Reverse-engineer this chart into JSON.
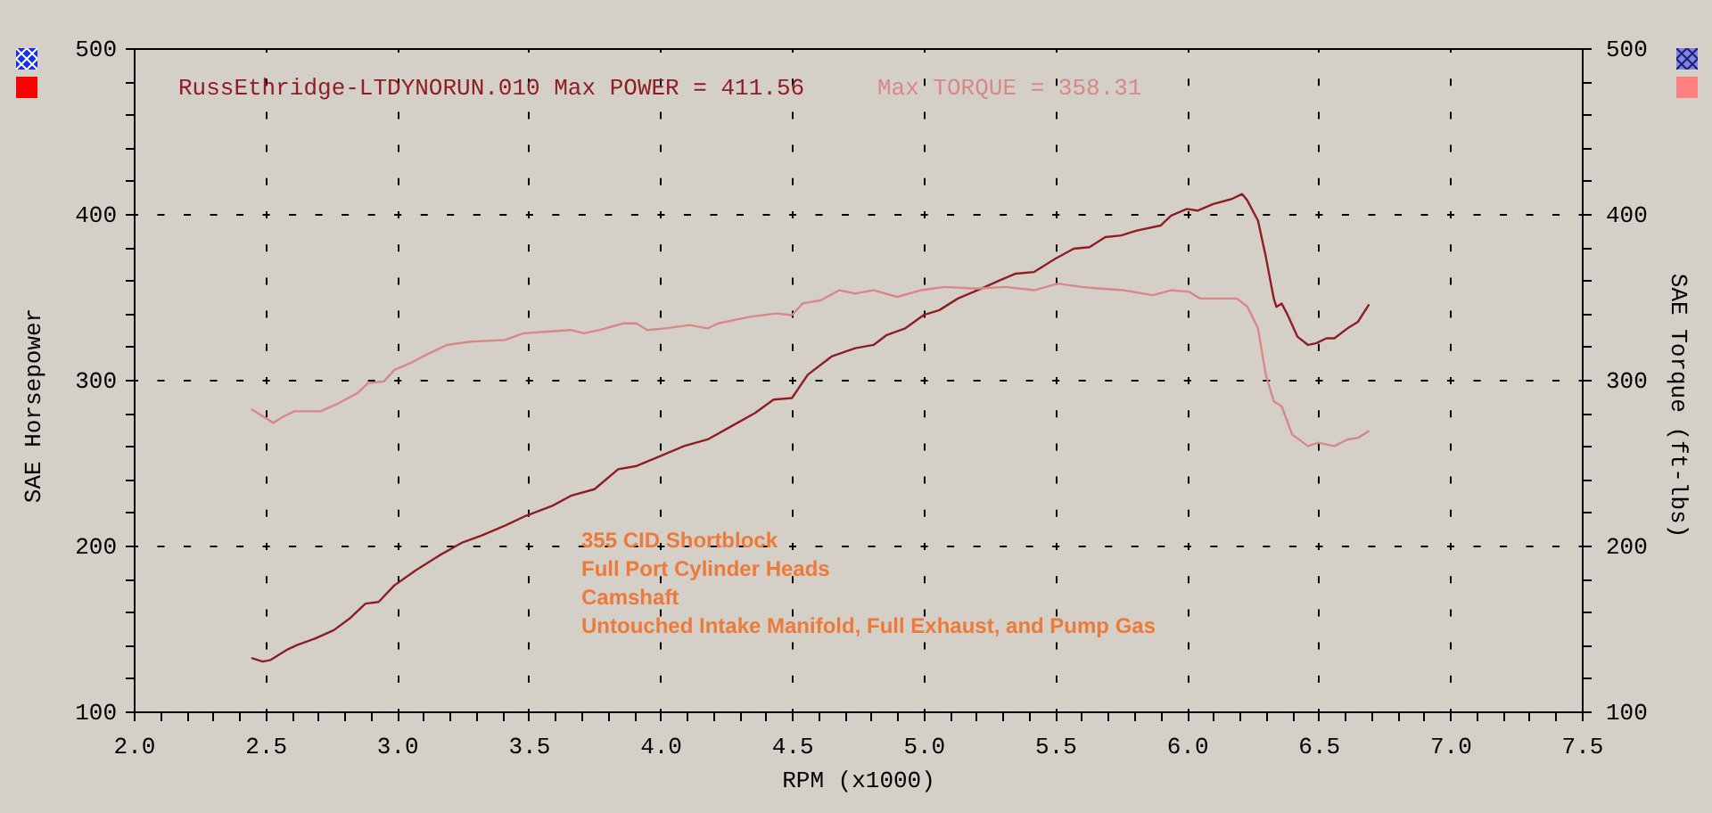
{
  "chart_data": {
    "type": "line",
    "xlabel": "RPM (x1000)",
    "ylabel": "SAE Horsepower",
    "y2label": "SAE Torque (ft-lbs)",
    "annotations": [
      "RussEthridge-LTDYNORUN.010 Max POWER = 411.56",
      "Max TORQUE = 358.31",
      "355 CID Shortblock",
      "Full Port Cylinder Heads",
      "Camshaft",
      "Untouched Intake Manifold, Full Exhaust, and Pump Gas"
    ],
    "series": [
      {
        "color": "#901c24",
        "x": [
          2.45,
          2.49,
          2.52,
          2.58,
          2.62,
          2.69,
          2.76,
          2.82,
          2.88,
          2.93,
          2.99,
          3.07,
          3.16,
          3.25,
          3.32,
          3.41,
          3.49,
          3.59,
          3.66,
          3.75,
          3.84,
          3.91,
          4.0,
          4.09,
          4.18,
          4.27,
          4.36,
          4.43,
          4.5,
          4.56,
          4.65,
          4.74,
          4.81,
          4.86,
          4.93,
          5.0,
          5.06,
          5.13,
          5.22,
          5.29,
          5.35,
          5.42,
          5.5,
          5.57,
          5.63,
          5.69,
          5.75,
          5.81,
          5.9,
          5.94,
          6.0,
          6.04,
          6.1,
          6.17,
          6.21,
          6.23,
          6.27,
          6.3,
          6.33,
          6.34,
          6.36,
          6.38,
          6.42,
          6.46,
          6.49,
          6.53,
          6.56,
          6.61,
          6.65,
          6.69
        ],
        "values": [
          132,
          130,
          131,
          137,
          140,
          144,
          149,
          156,
          165,
          166,
          176,
          185,
          194,
          202,
          206,
          212,
          218,
          224,
          230,
          234,
          246,
          248,
          254,
          260,
          264,
          272,
          280,
          288,
          289,
          303,
          314,
          319,
          321,
          327,
          331,
          339,
          342,
          349,
          355,
          360,
          364,
          365,
          373,
          379,
          380,
          386,
          387,
          390,
          393,
          399,
          403,
          402,
          406,
          409,
          412,
          408,
          396,
          374,
          349,
          344,
          346,
          340,
          326,
          321,
          322,
          325,
          325,
          331,
          335,
          345
        ]
      },
      {
        "color": "#d98888",
        "axis": "y2",
        "x": [
          2.45,
          2.5,
          2.53,
          2.56,
          2.61,
          2.71,
          2.78,
          2.85,
          2.89,
          2.95,
          2.99,
          3.05,
          3.11,
          3.19,
          3.28,
          3.41,
          3.48,
          3.57,
          3.66,
          3.71,
          3.77,
          3.86,
          3.91,
          3.95,
          4.02,
          4.11,
          4.18,
          4.22,
          4.34,
          4.44,
          4.5,
          4.54,
          4.61,
          4.68,
          4.74,
          4.81,
          4.9,
          4.99,
          5.08,
          5.2,
          5.31,
          5.42,
          5.51,
          5.6,
          5.67,
          5.76,
          5.87,
          5.94,
          6.01,
          6.05,
          6.19,
          6.23,
          6.27,
          6.3,
          6.33,
          6.36,
          6.4,
          6.46,
          6.5,
          6.56,
          6.61,
          6.65,
          6.69
        ],
        "values": [
          282,
          277,
          274,
          277,
          281,
          281,
          286,
          292,
          298,
          299,
          306,
          310,
          315,
          321,
          323,
          324,
          328,
          329,
          330,
          328,
          330,
          334,
          334,
          330,
          331,
          333,
          331,
          334,
          338,
          340,
          339,
          346,
          348,
          354,
          352,
          354,
          350,
          354,
          356,
          355,
          356,
          354,
          358,
          356,
          355,
          354,
          351,
          354,
          353,
          349,
          349,
          344,
          331,
          303,
          287,
          284,
          267,
          260,
          262,
          260,
          264,
          265,
          269
        ]
      }
    ],
    "xlim": [
      2,
      7.5
    ],
    "xticks": [
      {
        "value": 2,
        "label": "2.0"
      },
      {
        "value": 2.1,
        "label": null
      },
      {
        "value": 2.2,
        "label": null
      },
      {
        "value": 2.3,
        "label": null
      },
      {
        "value": 2.4,
        "label": null
      },
      {
        "value": 2.5,
        "label": "2.5"
      },
      {
        "value": 2.6,
        "label": null
      },
      {
        "value": 2.7,
        "label": null
      },
      {
        "value": 2.8,
        "label": null
      },
      {
        "value": 2.9,
        "label": null
      },
      {
        "value": 3,
        "label": "3.0"
      },
      {
        "value": 3.1,
        "label": null
      },
      {
        "value": 3.2,
        "label": null
      },
      {
        "value": 3.3,
        "label": null
      },
      {
        "value": 3.4,
        "label": null
      },
      {
        "value": 3.5,
        "label": "3.5"
      },
      {
        "value": 3.6,
        "label": null
      },
      {
        "value": 3.7,
        "label": null
      },
      {
        "value": 3.8,
        "label": null
      },
      {
        "value": 3.9,
        "label": null
      },
      {
        "value": 4,
        "label": "4.0"
      },
      {
        "value": 4.1,
        "label": null
      },
      {
        "value": 4.2,
        "label": null
      },
      {
        "value": 4.3,
        "label": null
      },
      {
        "value": 4.4,
        "label": null
      },
      {
        "value": 4.5,
        "label": "4.5"
      },
      {
        "value": 4.6,
        "label": null
      },
      {
        "value": 4.7,
        "label": null
      },
      {
        "value": 4.8,
        "label": null
      },
      {
        "value": 4.9,
        "label": null
      },
      {
        "value": 5,
        "label": "5.0"
      },
      {
        "value": 5.1,
        "label": null
      },
      {
        "value": 5.2,
        "label": null
      },
      {
        "value": 5.3,
        "label": null
      },
      {
        "value": 5.4,
        "label": null
      },
      {
        "value": 5.5,
        "label": "5.5"
      },
      {
        "value": 5.6,
        "label": null
      },
      {
        "value": 5.7,
        "label": null
      },
      {
        "value": 5.8,
        "label": null
      },
      {
        "value": 5.9,
        "label": null
      },
      {
        "value": 6,
        "label": "6.0"
      },
      {
        "value": 6.1,
        "label": null
      },
      {
        "value": 6.2,
        "label": null
      },
      {
        "value": 6.3,
        "label": null
      },
      {
        "value": 6.4,
        "label": null
      },
      {
        "value": 6.5,
        "label": "6.5"
      },
      {
        "value": 6.6,
        "label": null
      },
      {
        "value": 6.7,
        "label": null
      },
      {
        "value": 6.8,
        "label": null
      },
      {
        "value": 6.9,
        "label": null
      },
      {
        "value": 7,
        "label": "7.0"
      },
      {
        "value": 7.1,
        "label": null
      },
      {
        "value": 7.2,
        "label": null
      },
      {
        "value": 7.3,
        "label": null
      },
      {
        "value": 7.4,
        "label": null
      },
      {
        "value": 7.5,
        "label": "7.5"
      }
    ],
    "ylim": [
      100,
      500
    ],
    "yticks": [
      100,
      {
        "value": 120,
        "label": null
      },
      {
        "value": 140,
        "label": null
      },
      {
        "value": 160,
        "label": null
      },
      {
        "value": 180,
        "label": null
      },
      200,
      {
        "value": 220,
        "label": null
      },
      {
        "value": 240,
        "label": null
      },
      {
        "value": 260,
        "label": null
      },
      {
        "value": 280,
        "label": null
      },
      300,
      {
        "value": 320,
        "label": null
      },
      {
        "value": 340,
        "label": null
      },
      {
        "value": 360,
        "label": null
      },
      {
        "value": 380,
        "label": null
      },
      400,
      {
        "value": 420,
        "label": null
      },
      {
        "value": 440,
        "label": null
      },
      {
        "value": 460,
        "label": null
      },
      {
        "value": 480,
        "label": null
      },
      500
    ],
    "y2lim": [
      100,
      500
    ],
    "y2ticks": [
      100,
      {
        "value": 120,
        "label": null
      },
      {
        "value": 140,
        "label": null
      },
      {
        "value": 160,
        "label": null
      },
      {
        "value": 180,
        "label": null
      },
      200,
      {
        "value": 220,
        "label": null
      },
      {
        "value": 240,
        "label": null
      },
      {
        "value": 260,
        "label": null
      },
      {
        "value": 280,
        "label": null
      },
      300,
      {
        "value": 320,
        "label": null
      },
      {
        "value": 340,
        "label": null
      },
      {
        "value": 360,
        "label": null
      },
      {
        "value": 380,
        "label": null
      },
      400,
      {
        "value": 420,
        "label": null
      },
      {
        "value": 440,
        "label": null
      },
      {
        "value": 460,
        "label": null
      },
      {
        "value": 480,
        "label": null
      },
      500
    ],
    "grid": true,
    "line_style": "solid"
  }
}
